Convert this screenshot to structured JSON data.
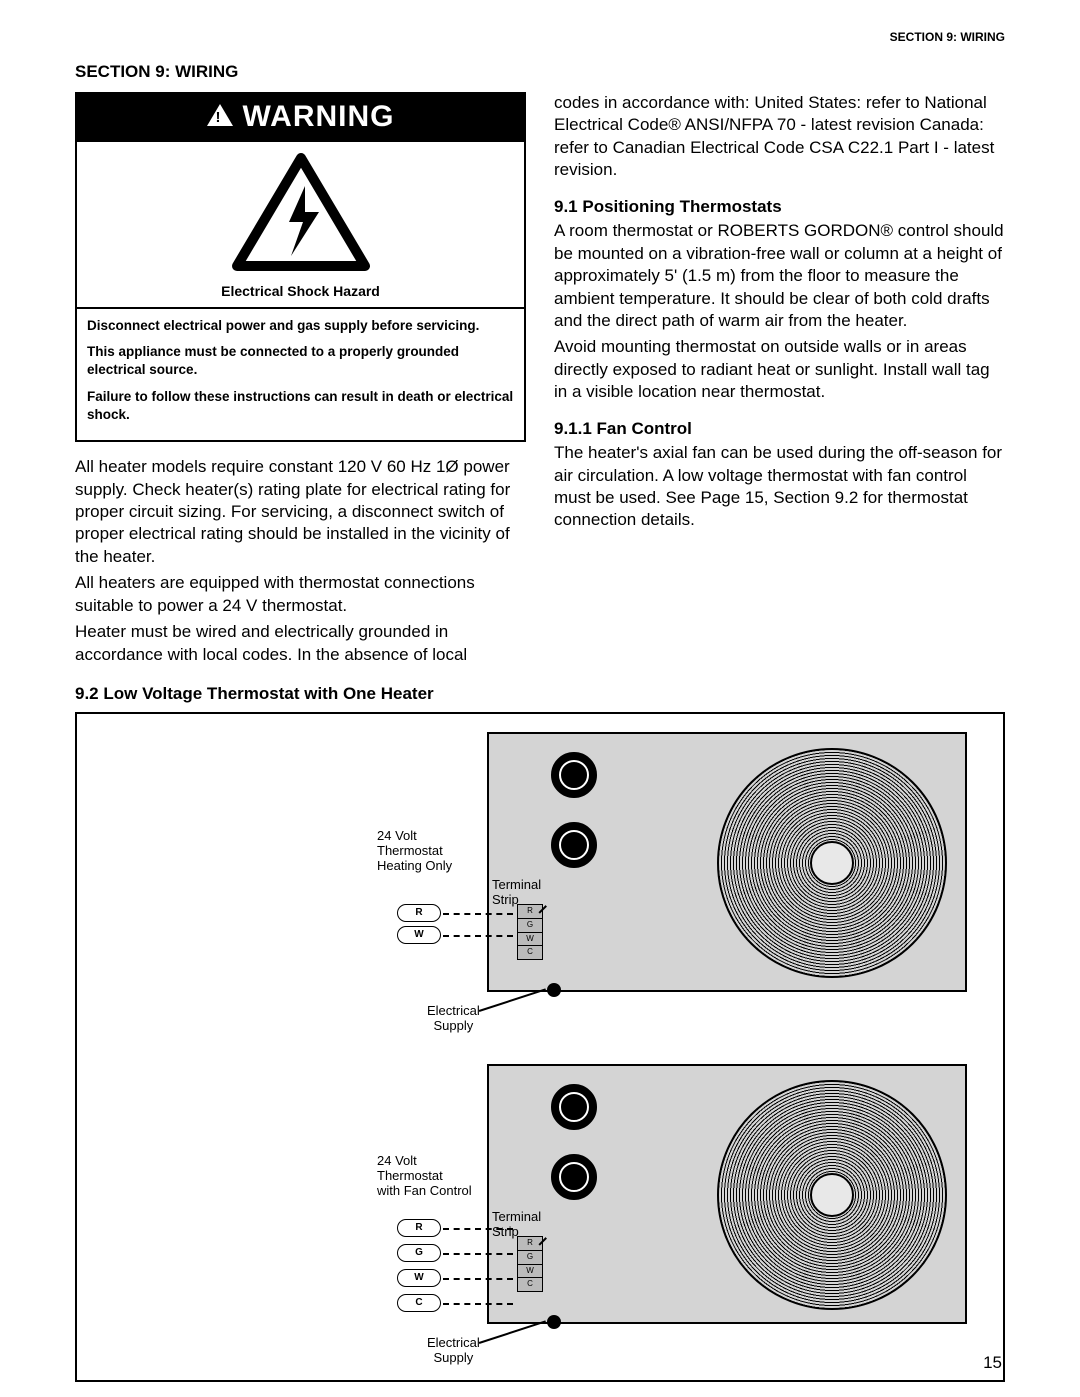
{
  "header": {
    "section_tag": "SECTION 9: WIRING"
  },
  "section_title": "SECTION 9: WIRING",
  "warning": {
    "banner": "WARNING",
    "hazard_caption": "Electrical Shock Hazard",
    "p1": "Disconnect electrical power and gas supply before servicing.",
    "p2": "This appliance must be connected to a properly grounded electrical source.",
    "p3": "Failure to follow these instructions can result in death or electrical shock."
  },
  "left_body": {
    "p1": "All heater models require constant 120 V 60 Hz 1Ø power supply. Check heater(s) rating plate for electrical rating for proper circuit sizing. For servicing, a disconnect switch of proper electrical rating should be installed in the vicinity of the heater.",
    "p2": "All heaters are equipped with thermostat connections suitable to power a 24 V thermostat.",
    "p3": "Heater must be wired and electrically grounded in accordance with local codes. In the absence of local"
  },
  "right_body": {
    "p0": "codes in accordance with: United States: refer to National Electrical Code® ANSI/NFPA 70 - latest revision Canada: refer to Canadian Electrical Code CSA C22.1 Part I - latest revision.",
    "h91": "9.1 Positioning Thermostats",
    "p91a": "A room thermostat or ROBERTS GORDON® control should be mounted on a vibration-free wall or column at a height of approximately 5' (1.5 m) from the floor to measure the ambient temperature. It should be clear of both cold drafts and the direct path of warm air from the heater.",
    "p91b": "Avoid mounting thermostat on outside walls or in areas directly exposed to radiant heat or sunlight. Install wall tag in a visible location near thermostat.",
    "h911": "9.1.1 Fan Control",
    "p911": "The heater's axial fan can be used during the off-season for air circulation. A low voltage thermostat with fan control must be used. See Page 15, Section 9.2 for thermostat connection details."
  },
  "diagram": {
    "heading": "9.2 Low Voltage Thermostat with One Heater",
    "labels": {
      "thermo_heating": "24 Volt\nThermostat\nHeating Only",
      "thermo_fan": "24 Volt\nThermostat\nwith Fan Control",
      "terminal_strip": "Terminal\nStrip",
      "electrical_supply": "Electrical\nSupply"
    },
    "pills_top": [
      "R",
      "W"
    ],
    "pills_bottom": [
      "R",
      "G",
      "W",
      "C"
    ],
    "terminals": [
      "R",
      "G",
      "W",
      "C"
    ],
    "colors": {
      "unit_bg": "#d4d4d4",
      "border": "#000000",
      "page_bg": "#ffffff"
    }
  },
  "page_number": "15"
}
